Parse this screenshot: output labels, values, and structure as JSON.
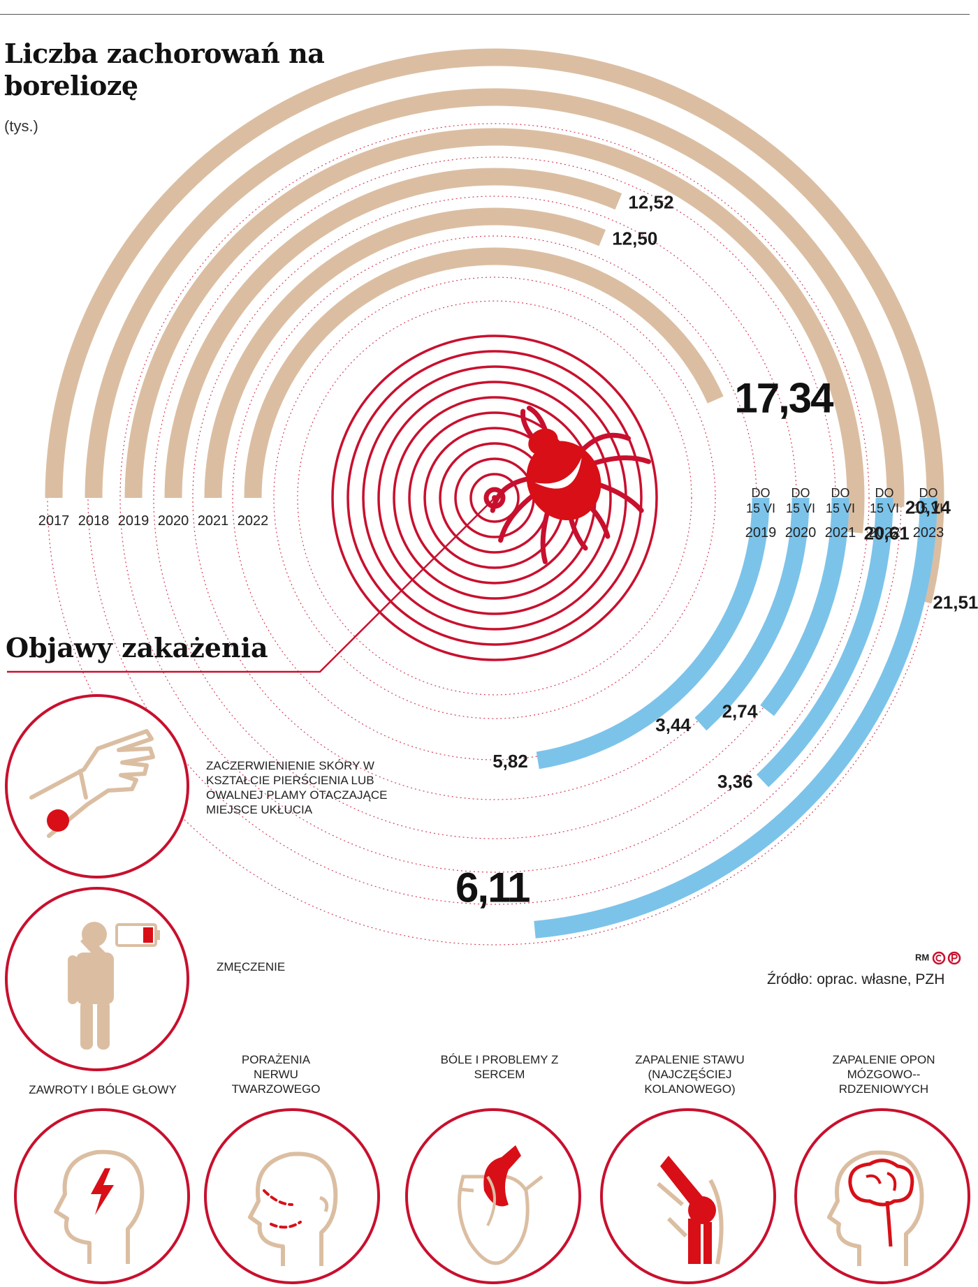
{
  "title": "Liczba zachorowań na boreliozę",
  "unit": "(tys.)",
  "symptoms_title": "Objawy zakażenia",
  "symptoms": {
    "skin": "ZACZERWIENIENIE SKÓRY W KSZTAŁCIE PIERŚCIENIA LUB OWALNEJ PLAMY OTACZAJĄCE MIEJSCE UKŁUCIA",
    "fatigue": "ZMĘCZENIE",
    "headache": "ZAWROTY I BÓLE GŁOWY",
    "facial": "PORAŻENIA NERWU TWARZOWEGO",
    "heart": "BÓLE I PROBLEMY Z SERCEM",
    "joint": "ZAPALENIE STAWU (NAJCZĘŚCIEJ KOLANOWEGO)",
    "meningitis": "ZAPALENIE OPON MÓZGOWO--RDZENIOWYCH"
  },
  "icons": [
    "hand-rash-icon",
    "tired-person-icon",
    "head-lightning-icon",
    "face-nerve-icon",
    "heart-icon",
    "knee-icon",
    "brain-icon",
    "tick-icon"
  ],
  "colors": {
    "annual": "#dbbea2",
    "partial": "#7cc3ea",
    "accent": "#c8102e",
    "symbol": "#dbbea2"
  },
  "credit": "RM",
  "source": "Źródło: oprac. własne, PZH",
  "chart_data": [
    {
      "type": "bar",
      "layout": "radial",
      "title": "Liczba zachorowań na boreliozę",
      "unit": "tys.",
      "categories": [
        "2017",
        "2018",
        "2019",
        "2020",
        "2021",
        "2022"
      ],
      "values": [
        21.51,
        20.14,
        20.61,
        12.52,
        12.5,
        17.34
      ],
      "value_labels": [
        "21,51",
        "20,14",
        "20,61",
        "12,52",
        "12,50",
        "17,34"
      ],
      "highlight": "2022"
    },
    {
      "type": "bar",
      "layout": "radial",
      "series_label": "DO 15 VI",
      "categories": [
        "2019",
        "2020",
        "2021",
        "2022",
        "2023"
      ],
      "values": [
        5.82,
        3.44,
        2.74,
        3.36,
        6.11
      ],
      "value_labels": [
        "5,82",
        "3,44",
        "2,74",
        "3,36",
        "6,11"
      ],
      "highlight": "2023"
    }
  ]
}
